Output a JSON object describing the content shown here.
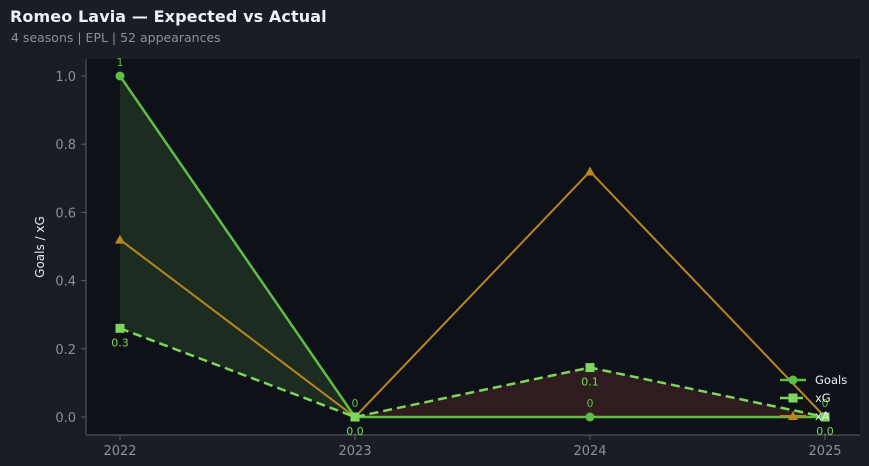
{
  "header": {
    "title": "Romeo Lavia — Expected vs Actual",
    "subtitle": "4 seasons | EPL | 52 appearances"
  },
  "colors": {
    "background": "#1a1d24",
    "plot_background": "#0e1118",
    "goals": "#5dbf45",
    "xg": "#7ed65e",
    "xa": "#b8861f",
    "fill_over": "#1c2c21",
    "fill_under": "#2e1c1f",
    "axis": "#5a5f68",
    "tick_text": "#8b9099"
  },
  "chart_data": {
    "type": "line",
    "title": "Romeo Lavia — Expected vs Actual",
    "subtitle": "4 seasons | EPL | 52 appearances",
    "xlabel": "",
    "ylabel": "Goals / xG",
    "categories": [
      "2022",
      "2023",
      "2024",
      "2025"
    ],
    "ylim": [
      -0.05,
      1.05
    ],
    "yticks": [
      0.0,
      0.2,
      0.4,
      0.6,
      0.8,
      1.0
    ],
    "ytick_labels": [
      "0.0",
      "0.2",
      "0.4",
      "0.6",
      "0.8",
      "1.0"
    ],
    "grid": false,
    "legend_position": "lower right",
    "series": [
      {
        "name": "Goals",
        "values": [
          1,
          0,
          0,
          0
        ],
        "labels": [
          "1",
          "0",
          "0",
          "0"
        ],
        "style": "solid",
        "marker": "circle",
        "color": "#5dbf45"
      },
      {
        "name": "xG",
        "values": [
          0.26,
          0.0,
          0.145,
          0.0
        ],
        "labels": [
          "0.3",
          "0.0",
          "0.1",
          "0.0"
        ],
        "style": "dashed",
        "marker": "square",
        "color": "#7ed65e"
      },
      {
        "name": "xA",
        "values": [
          0.52,
          0.0,
          0.72,
          0.0
        ],
        "style": "solid",
        "marker": "triangle",
        "color": "#b8861f"
      }
    ],
    "fills": [
      {
        "between": [
          "Goals",
          "xG"
        ],
        "where": "Goals > xG",
        "color": "#1c2c21"
      },
      {
        "between": [
          "Goals",
          "xG"
        ],
        "where": "xG > Goals",
        "color": "#2e1c1f"
      }
    ]
  },
  "legend": {
    "items": [
      {
        "label": "Goals"
      },
      {
        "label": "xG"
      },
      {
        "label": "xA"
      }
    ]
  }
}
